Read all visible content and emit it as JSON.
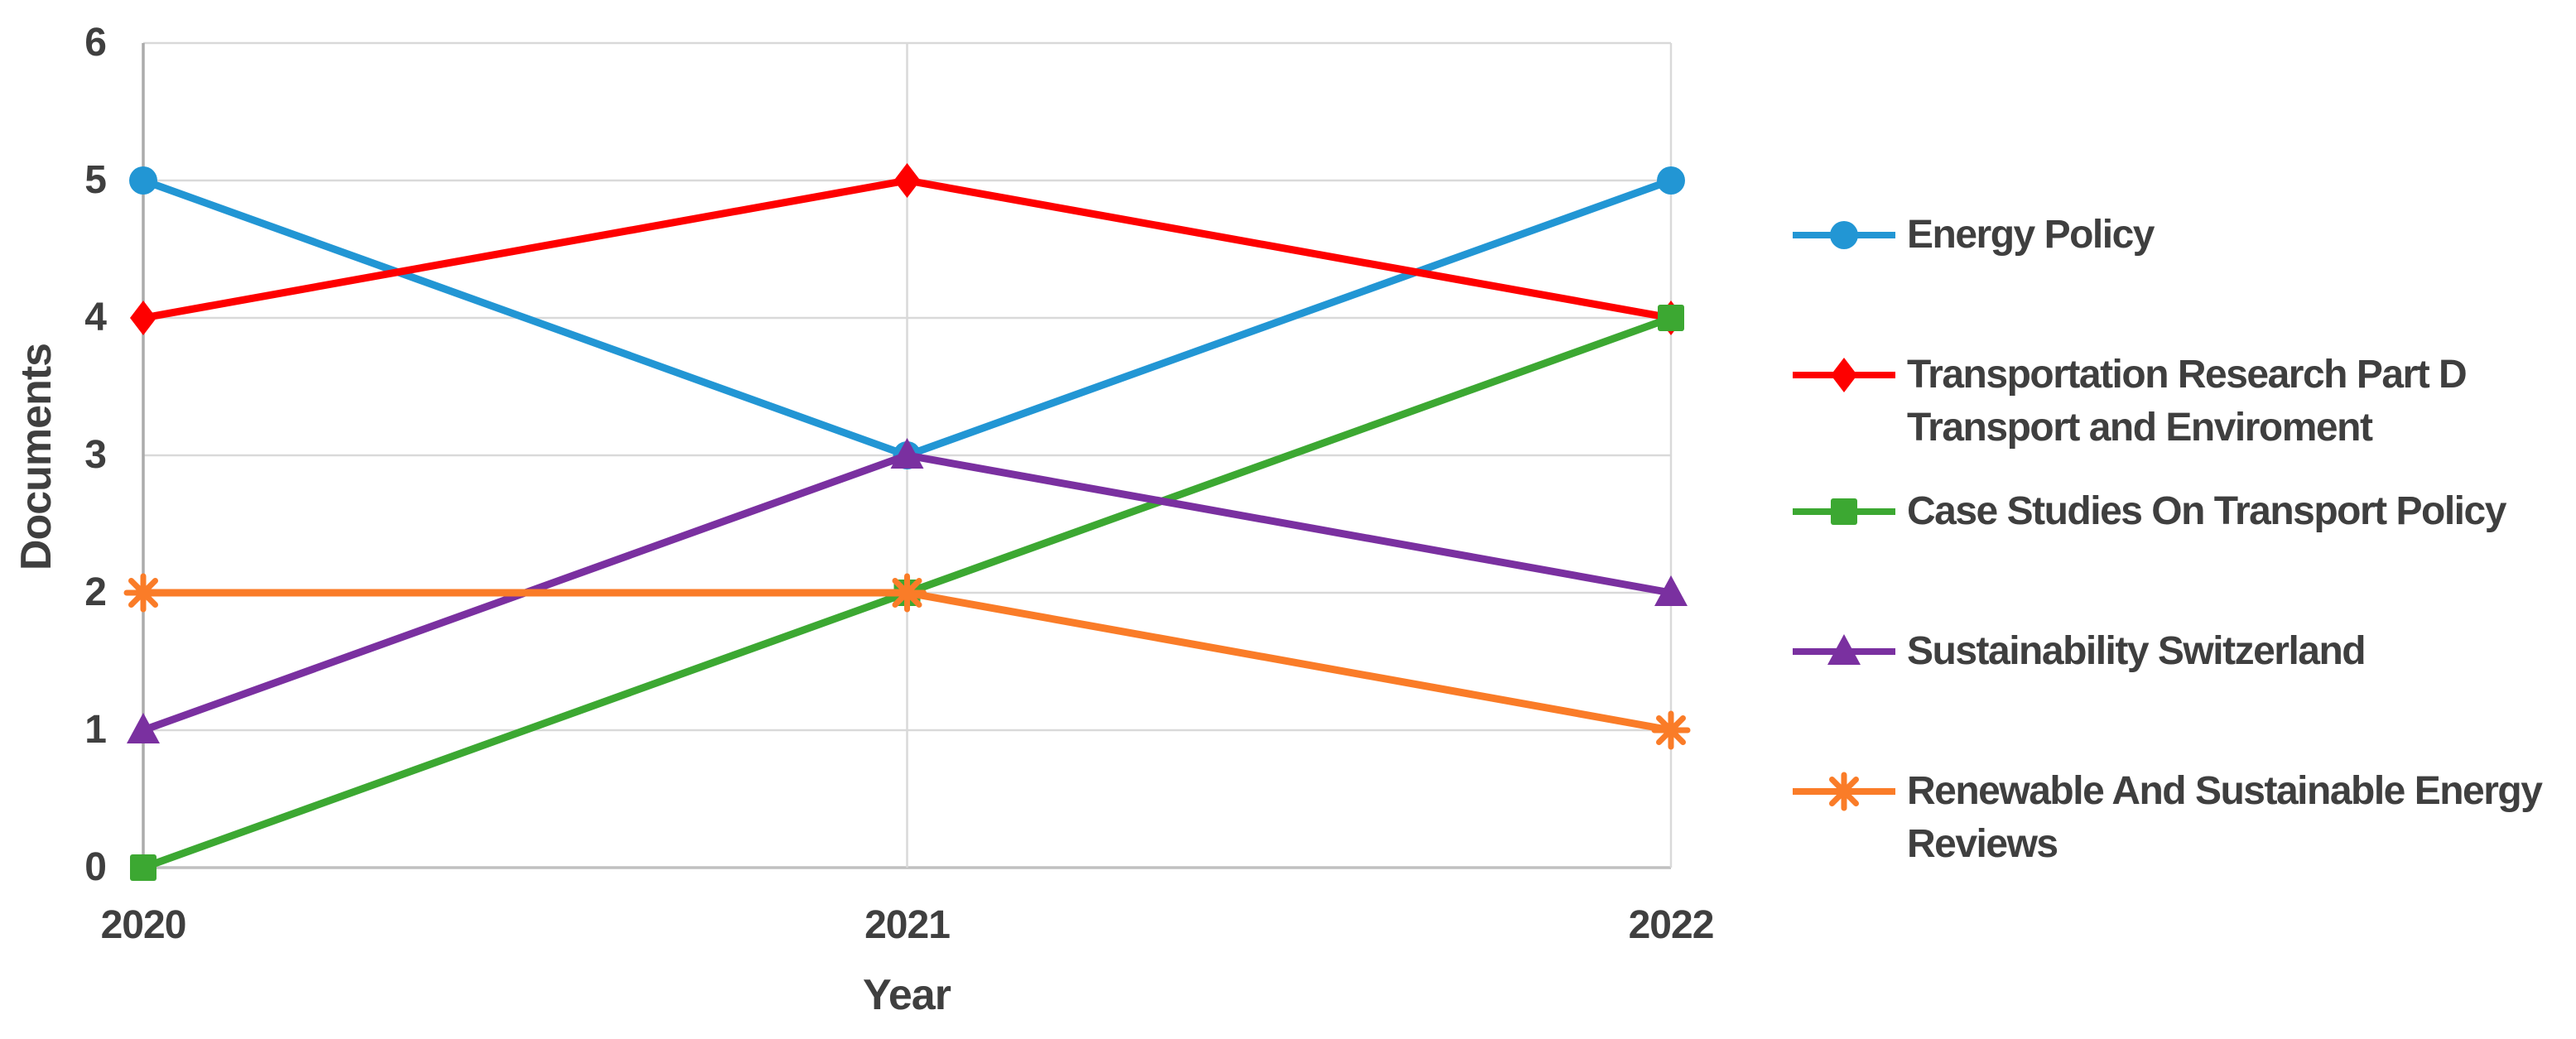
{
  "chart_data": {
    "type": "line",
    "title": "",
    "xlabel": "Year",
    "ylabel": "Documents",
    "categories": [
      "2020",
      "2021",
      "2022"
    ],
    "ylim": [
      0,
      6
    ],
    "yticks": [
      0,
      1,
      2,
      3,
      4,
      5,
      6
    ],
    "grid": true,
    "legend_position": "right",
    "series": [
      {
        "name": "Energy Policy",
        "lines": [
          "Energy Policy"
        ],
        "marker": "circle",
        "color": "#2296D4",
        "values": [
          5,
          3,
          5
        ]
      },
      {
        "name": "Transportation Research Part D Transport and Enviroment",
        "lines": [
          "Transportation Research Part D",
          "Transport and Enviroment"
        ],
        "marker": "diamond",
        "color": "#FE0000",
        "values": [
          4,
          5,
          4
        ]
      },
      {
        "name": "Case Studies On Transport Policy",
        "lines": [
          "Case Studies On Transport Policy"
        ],
        "marker": "square",
        "color": "#3CA832",
        "values": [
          0,
          2,
          4
        ]
      },
      {
        "name": "Sustainability Switzerland",
        "lines": [
          "Sustainability Switzerland"
        ],
        "marker": "triangle",
        "color": "#7A30A0",
        "values": [
          1,
          3,
          2
        ]
      },
      {
        "name": "Renewable And Sustainable Energy Reviews",
        "lines": [
          "Renewable And Sustainable Energy",
          "Reviews"
        ],
        "marker": "asterisk",
        "color": "#FA7C28",
        "values": [
          2,
          2,
          1
        ]
      }
    ],
    "colors": {
      "gridline": "#D9D9D9",
      "axis_line": "#ABABAB",
      "bottom_axis_line": "#C0C0C0",
      "text": "#3F3F3F"
    }
  }
}
